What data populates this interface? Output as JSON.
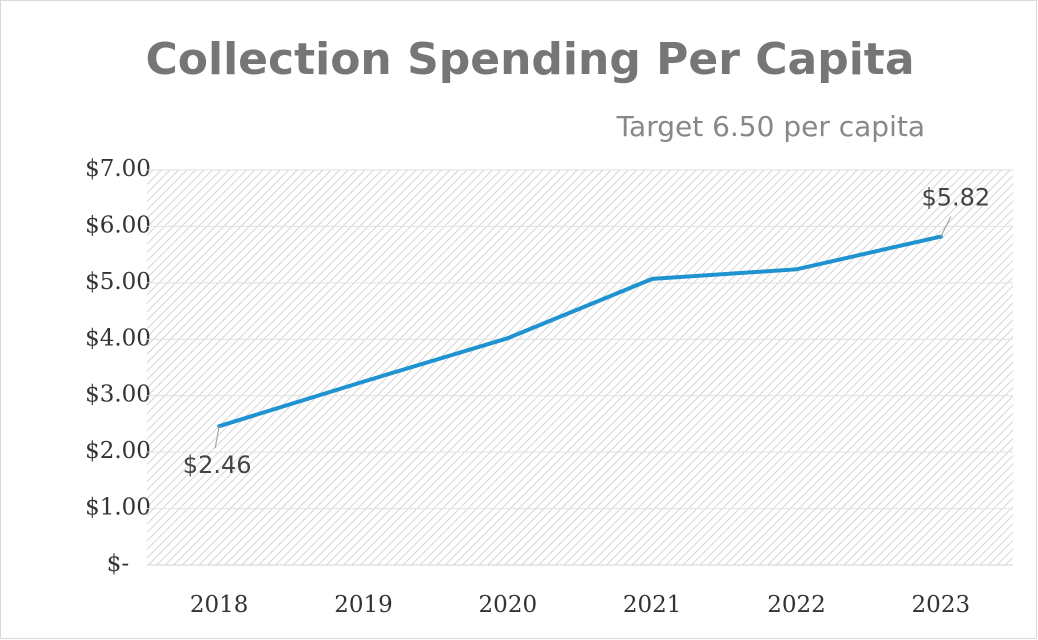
{
  "chart_data": {
    "type": "line",
    "title": "Collection Spending Per Capita",
    "subtitle": "Target 6.50 per capita",
    "categories": [
      "2018",
      "2019",
      "2020",
      "2021",
      "2022",
      "2023"
    ],
    "values": [
      2.46,
      3.25,
      4.02,
      5.07,
      5.24,
      5.82
    ],
    "value_labels": [
      "$2.46",
      null,
      null,
      null,
      null,
      "$5.82"
    ],
    "color": "#1f93cf",
    "ylim": [
      0,
      7
    ],
    "yticks": [
      {
        "value": 0,
        "label": "$-"
      },
      {
        "value": 1,
        "label": "$1.00"
      },
      {
        "value": 2,
        "label": "$2.00"
      },
      {
        "value": 3,
        "label": "$3.00"
      },
      {
        "value": 4,
        "label": "$4.00"
      },
      {
        "value": 5,
        "label": "$5.00"
      },
      {
        "value": 6,
        "label": "$6.00"
      },
      {
        "value": 7,
        "label": "$7.00"
      }
    ],
    "grid": true
  }
}
